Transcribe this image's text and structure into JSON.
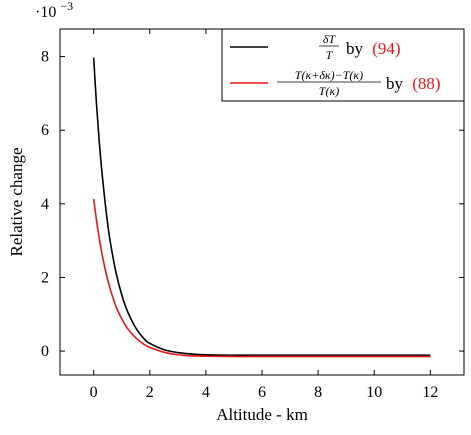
{
  "chart_data": {
    "type": "line",
    "xlabel": "Altitude - km",
    "ylabel": "Relative change",
    "y_scale_label": "·10",
    "y_scale_exponent": "−3",
    "xlim": [
      -1.2,
      13.2
    ],
    "ylim": [
      -0.65,
      8.75
    ],
    "x_ticks": [
      0,
      2,
      4,
      6,
      8,
      10,
      12
    ],
    "y_ticks": [
      0,
      2,
      4,
      6,
      8
    ],
    "x_tick_labels": [
      "0",
      "2",
      "4",
      "6",
      "8",
      "10",
      "12"
    ],
    "y_tick_labels": [
      "0",
      "2",
      "4",
      "6",
      "8"
    ],
    "grid": false,
    "legend_position": "top-right",
    "series": [
      {
        "name_numerator": "δT",
        "name_denominator": "T",
        "name_suffix": "by",
        "name_ref": "(94)",
        "color": "#000000",
        "x": [
          0,
          0.1,
          0.2,
          0.3,
          0.4,
          0.5,
          0.6,
          0.8,
          1.0,
          1.2,
          1.5,
          1.8,
          2.0,
          2.5,
          3.0,
          3.5,
          4.0,
          5.0,
          6.0,
          8.0,
          10.0,
          12.0
        ],
        "y": [
          7.97,
          6.72,
          5.68,
          4.82,
          4.09,
          3.46,
          2.93,
          2.12,
          1.53,
          1.09,
          0.63,
          0.33,
          0.21,
          0.04,
          -0.04,
          -0.08,
          -0.1,
          -0.11,
          -0.11,
          -0.11,
          -0.11,
          -0.11
        ]
      },
      {
        "name_numerator": "T(κ+δκ)−T(κ)",
        "name_denominator": "T(κ)",
        "name_suffix": "by",
        "name_ref": "(88)",
        "color": "#e8161c",
        "x": [
          0,
          0.1,
          0.2,
          0.3,
          0.4,
          0.5,
          0.6,
          0.8,
          1.0,
          1.2,
          1.5,
          1.8,
          2.0,
          2.5,
          3.0,
          3.5,
          4.0,
          5.0,
          6.0,
          8.0,
          10.0,
          12.0
        ],
        "y": [
          4.13,
          3.56,
          3.06,
          2.63,
          2.26,
          1.94,
          1.66,
          1.2,
          0.88,
          0.62,
          0.36,
          0.18,
          0.1,
          -0.03,
          -0.1,
          -0.13,
          -0.14,
          -0.15,
          -0.15,
          -0.15,
          -0.15,
          -0.15
        ]
      }
    ]
  }
}
